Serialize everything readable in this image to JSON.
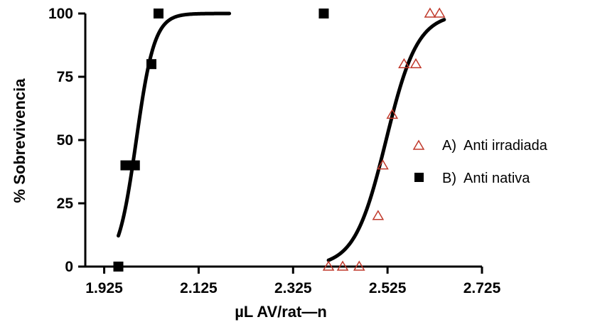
{
  "chart_data": {
    "type": "scatter",
    "xlabel": "µL AV/rat—n",
    "ylabel": "% Sobrevivencia",
    "xlim": [
      1.885,
      2.725
    ],
    "ylim": [
      0,
      100
    ],
    "x_ticks": [
      1.925,
      2.125,
      2.325,
      2.525,
      2.725
    ],
    "x_tick_labels": [
      "1.925",
      "2.125",
      "2.325",
      "2.525",
      "2.725"
    ],
    "y_ticks": [
      0,
      25,
      50,
      75,
      100
    ],
    "y_tick_labels": [
      "0",
      "25",
      "50",
      "75",
      "100"
    ],
    "grid": false,
    "legend_position": "right",
    "series": [
      {
        "name": "A)  Anti irradiada",
        "marker": "open-triangle",
        "color": "#c0392b",
        "points": [
          {
            "x": 2.4,
            "y": 0
          },
          {
            "x": 2.43,
            "y": 0
          },
          {
            "x": 2.465,
            "y": 0
          },
          {
            "x": 2.505,
            "y": 20
          },
          {
            "x": 2.515,
            "y": 40
          },
          {
            "x": 2.535,
            "y": 60
          },
          {
            "x": 2.56,
            "y": 80
          },
          {
            "x": 2.585,
            "y": 80
          },
          {
            "x": 2.615,
            "y": 100
          },
          {
            "x": 2.635,
            "y": 100
          }
        ],
        "fit_curve": {
          "model": "sigmoid",
          "x50": 2.522,
          "slope": 30,
          "x_range": [
            2.4,
            2.645
          ],
          "color": "#000000"
        }
      },
      {
        "name": "B)  Anti nativa",
        "marker": "filled-square",
        "color": "#000000",
        "points": [
          {
            "x": 1.955,
            "y": 0
          },
          {
            "x": 1.97,
            "y": 40
          },
          {
            "x": 1.99,
            "y": 40
          },
          {
            "x": 2.025,
            "y": 80
          },
          {
            "x": 2.04,
            "y": 100
          },
          {
            "x": 2.39,
            "y": 100
          }
        ],
        "fit_curve": {
          "model": "sigmoid",
          "x50": 1.993,
          "slope": 52,
          "x_range": [
            1.955,
            2.19
          ],
          "color": "#000000"
        }
      }
    ]
  }
}
